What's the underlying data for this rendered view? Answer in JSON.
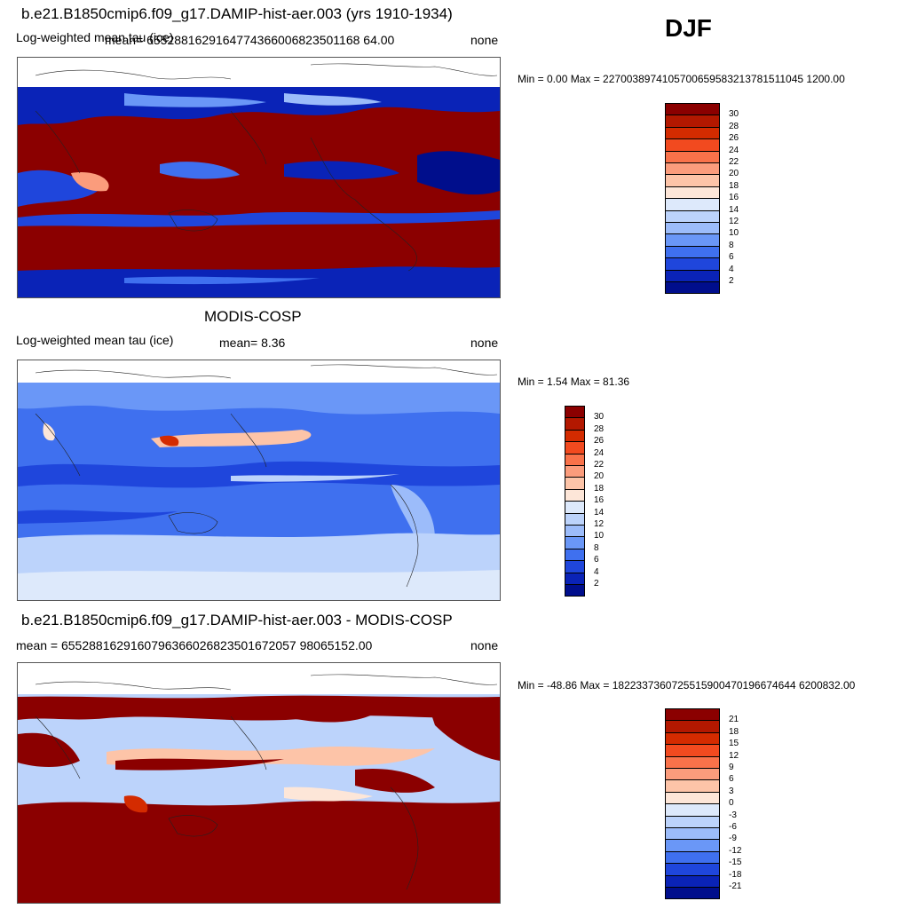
{
  "season": "DJF",
  "panels": [
    {
      "title": "b.e21.B1850cmip6.f09_g17.DAMIP-hist-aer.003 (yrs 1910-1934)",
      "variable": "Log-weighted mean tau (ice)",
      "mean": "mean= 6552881629164774366006823501168 64.00",
      "units": "none",
      "minmax": "Min =   0.00 Max = 2270038974105700659583213781511045 1200.00",
      "colorbar": {
        "labels": [
          "30",
          "28",
          "26",
          "24",
          "22",
          "20",
          "18",
          "16",
          "14",
          "12",
          "10",
          "8",
          "6",
          "4",
          "2"
        ],
        "colors": [
          "#8b0000",
          "#b31800",
          "#d42b00",
          "#f24a1f",
          "#f9724a",
          "#fb9c7c",
          "#fdc4a8",
          "#fde6d8",
          "#dde9fb",
          "#bcd3fb",
          "#9cbcfa",
          "#6a97f7",
          "#3f70ef",
          "#1f46dc",
          "#0a23b7",
          "#000e8c"
        ]
      }
    },
    {
      "title": "MODIS-COSP",
      "variable": "Log-weighted mean tau (ice)",
      "mean": "mean=   8.36",
      "units": "none",
      "minmax": "Min =   1.54 Max =  81.36",
      "colorbar": {
        "labels": [
          "30",
          "28",
          "26",
          "24",
          "22",
          "20",
          "18",
          "16",
          "14",
          "12",
          "10",
          "8",
          "6",
          "4",
          "2"
        ],
        "colors": [
          "#8b0000",
          "#b31800",
          "#d42b00",
          "#f24a1f",
          "#f9724a",
          "#fb9c7c",
          "#fdc4a8",
          "#fde6d8",
          "#dde9fb",
          "#bcd3fb",
          "#9cbcfa",
          "#6a97f7",
          "#3f70ef",
          "#1f46dc",
          "#0a23b7",
          "#000e8c"
        ]
      }
    },
    {
      "title": "b.e21.B1850cmip6.f09_g17.DAMIP-hist-aer.003 - MODIS-COSP",
      "variable": "",
      "mean": "mean = 6552881629160796366026823501672057 98065152.00",
      "units": "none",
      "minmax": "Min = -48.86 Max = 1822337360725515900470196674644 6200832.00",
      "colorbar": {
        "labels": [
          "21",
          "18",
          "15",
          "12",
          "9",
          "6",
          "3",
          "0",
          "-3",
          "-6",
          "-9",
          "-12",
          "-15",
          "-18",
          "-21"
        ],
        "colors": [
          "#8b0000",
          "#b31800",
          "#d42b00",
          "#f24a1f",
          "#f9724a",
          "#fb9c7c",
          "#fdc4a8",
          "#fde6d8",
          "#dde9fb",
          "#bcd3fb",
          "#9cbcfa",
          "#6a97f7",
          "#3f70ef",
          "#1f46dc",
          "#0a23b7",
          "#000e8c"
        ]
      }
    }
  ]
}
